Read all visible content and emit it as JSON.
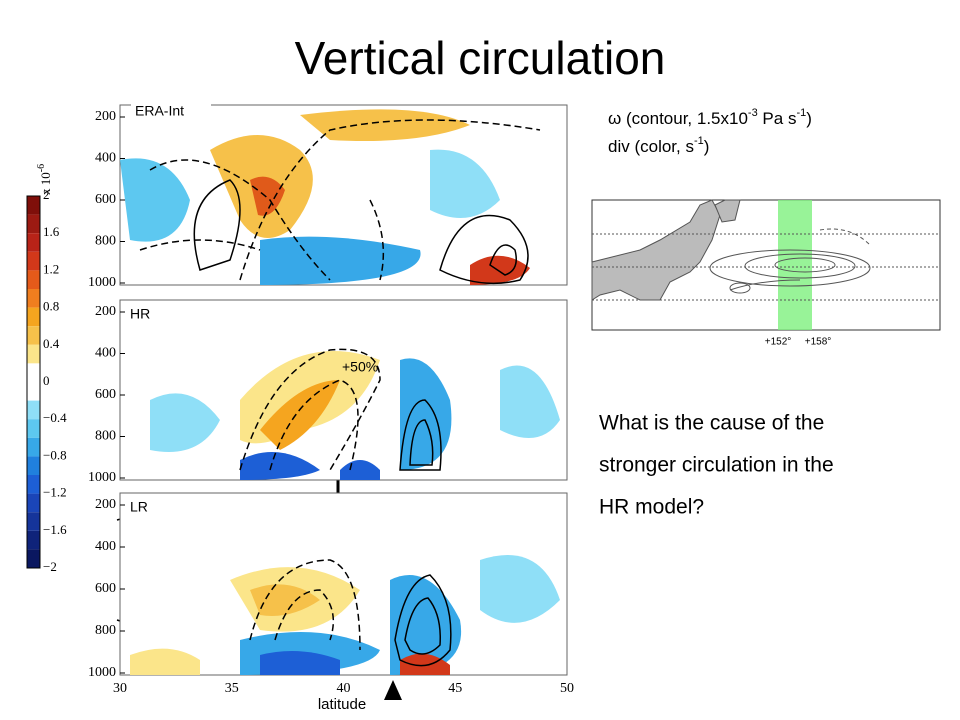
{
  "title": "Vertical circulation",
  "legend": {
    "line1": [
      "ω (contour, 1.5x10",
      "-3",
      " Pa s",
      "-1",
      ")"
    ],
    "line2": [
      "div (color, s",
      "-1",
      ")"
    ]
  },
  "panels": {
    "labels": [
      "ERA-Int",
      "HR",
      "LR"
    ],
    "yticks": [
      "200",
      "400",
      "600",
      "800",
      "1000"
    ],
    "xticks": [
      "30",
      "35",
      "40",
      "45",
      "50"
    ],
    "xlabel": "latitude"
  },
  "colorbar": {
    "scale": [
      "x 10",
      "-6"
    ],
    "ticks": [
      "2",
      "1.6",
      "1.2",
      "0.8",
      "0.4",
      "0",
      "−0.4",
      "−0.8",
      "−1.2",
      "−1.6",
      "−2"
    ]
  },
  "annotation": "+50%",
  "map": {
    "labels": [
      "+152°",
      "+158°"
    ]
  },
  "question": [
    "What is the cause of the",
    "stronger circulation in the",
    "HR model?"
  ]
}
